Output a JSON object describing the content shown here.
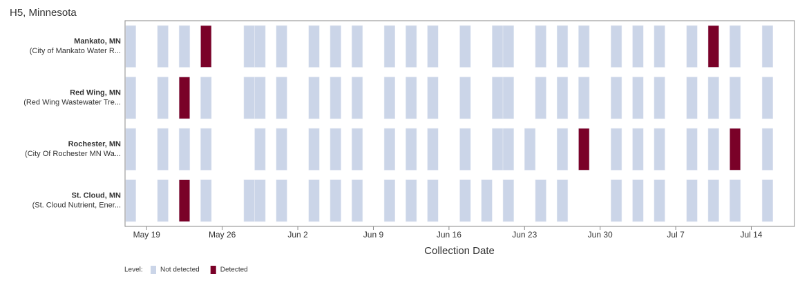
{
  "chart_data": {
    "type": "timeline-heatmap",
    "title": "H5, Minnesota",
    "x_label": "Collection Date",
    "legend_title": "Level:",
    "levels": [
      {
        "name": "Not detected",
        "color": "#cbd5e8"
      },
      {
        "name": "Detected",
        "color": "#7a0128"
      }
    ],
    "xlim": [
      "05-17",
      "07-18"
    ],
    "xticks": [
      {
        "value": "05-19",
        "label": "May 19"
      },
      {
        "value": "05-26",
        "label": "May 26"
      },
      {
        "value": "06-02",
        "label": "Jun 2"
      },
      {
        "value": "06-09",
        "label": "Jun 9"
      },
      {
        "value": "06-16",
        "label": "Jun 16"
      },
      {
        "value": "06-23",
        "label": "Jun 23"
      },
      {
        "value": "06-30",
        "label": "Jun 30"
      },
      {
        "value": "07-07",
        "label": "Jul 7"
      },
      {
        "value": "07-14",
        "label": "Jul 14"
      }
    ],
    "rows": [
      {
        "name": "Mankato, MN",
        "site": "(City of Mankato Water R...",
        "x": [
          "05-17",
          "05-20",
          "05-22",
          "05-24",
          "05-28",
          "05-29",
          "05-31",
          "06-03",
          "06-05",
          "06-07",
          "06-10",
          "06-12",
          "06-14",
          "06-17",
          "06-20",
          "06-21",
          "06-24",
          "06-26",
          "06-28",
          "07-01",
          "07-03",
          "07-05",
          "07-08",
          "07-10",
          "07-12",
          "07-15"
        ],
        "values": [
          0,
          0,
          0,
          1,
          0,
          0,
          0,
          0,
          0,
          0,
          0,
          0,
          0,
          0,
          0,
          0,
          0,
          0,
          0,
          0,
          0,
          0,
          0,
          1,
          0,
          0
        ]
      },
      {
        "name": "Red Wing, MN",
        "site": "(Red Wing Wastewater Tre...",
        "x": [
          "05-17",
          "05-20",
          "05-22",
          "05-24",
          "05-28",
          "05-29",
          "05-31",
          "06-03",
          "06-05",
          "06-07",
          "06-10",
          "06-12",
          "06-14",
          "06-17",
          "06-20",
          "06-21",
          "06-24",
          "06-26",
          "06-28",
          "07-01",
          "07-03",
          "07-05",
          "07-08",
          "07-10",
          "07-12",
          "07-15"
        ],
        "values": [
          0,
          0,
          1,
          0,
          0,
          0,
          0,
          0,
          0,
          0,
          0,
          0,
          0,
          0,
          0,
          0,
          0,
          0,
          0,
          0,
          0,
          0,
          0,
          0,
          0,
          0
        ]
      },
      {
        "name": "Rochester, MN",
        "site": "(City Of Rochester MN Wa...",
        "x": [
          "05-17",
          "05-20",
          "05-22",
          "05-24",
          "05-29",
          "05-31",
          "06-03",
          "06-05",
          "06-07",
          "06-10",
          "06-12",
          "06-14",
          "06-17",
          "06-20",
          "06-21",
          "06-23",
          "06-26",
          "06-28",
          "07-01",
          "07-03",
          "07-05",
          "07-08",
          "07-10",
          "07-12",
          "07-15"
        ],
        "values": [
          0,
          0,
          0,
          0,
          0,
          0,
          0,
          0,
          0,
          0,
          0,
          0,
          0,
          0,
          0,
          0,
          0,
          1,
          0,
          0,
          0,
          0,
          0,
          1,
          0
        ]
      },
      {
        "name": "St. Cloud, MN",
        "site": "(St. Cloud Nutrient, Ener...",
        "x": [
          "05-17",
          "05-20",
          "05-22",
          "05-24",
          "05-28",
          "05-29",
          "05-31",
          "06-03",
          "06-05",
          "06-07",
          "06-10",
          "06-12",
          "06-14",
          "06-17",
          "06-19",
          "06-21",
          "06-24",
          "06-26",
          "07-01",
          "07-03",
          "07-05",
          "07-08",
          "07-10",
          "07-12",
          "07-15"
        ],
        "values": [
          0,
          0,
          1,
          0,
          0,
          0,
          0,
          0,
          0,
          0,
          0,
          0,
          0,
          0,
          0,
          0,
          0,
          0,
          0,
          0,
          0,
          0,
          0,
          0,
          0
        ]
      }
    ]
  }
}
